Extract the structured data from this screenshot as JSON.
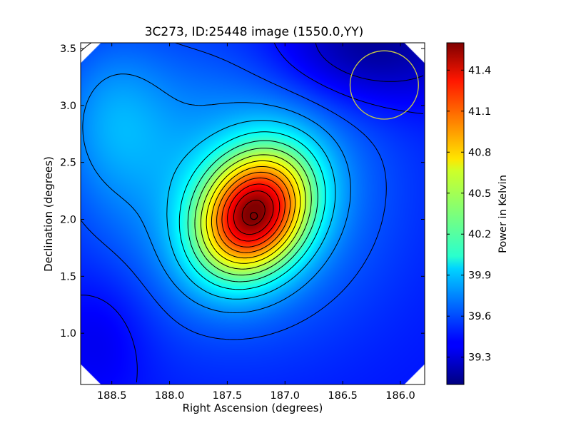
{
  "chart_data": {
    "type": "heatmap",
    "title": "3C273, ID:25448 image (1550.0,YY)",
    "xlabel": "Right Ascension (degrees)",
    "ylabel": "Declination (degrees)",
    "colorbar_label": "Power in Kelvin",
    "colormap": "jet",
    "x_axis_inverted": true,
    "xlim": [
      188.77,
      185.79
    ],
    "ylim": [
      0.55,
      3.55
    ],
    "xticks": [
      188.5,
      188.0,
      187.5,
      187.0,
      186.5,
      186.0
    ],
    "xtick_labels": [
      "188.5",
      "188.0",
      "187.5",
      "187.0",
      "186.5",
      "186.0"
    ],
    "yticks": [
      1.0,
      1.5,
      2.0,
      2.5,
      3.0,
      3.5
    ],
    "ytick_labels": [
      "1.0",
      "1.5",
      "2.0",
      "2.5",
      "3.0",
      "3.5"
    ],
    "colorbar_range": [
      39.1,
      41.6
    ],
    "colorbar_ticks": [
      39.3,
      39.6,
      39.9,
      40.2,
      40.5,
      40.8,
      41.1,
      41.4
    ],
    "colorbar_tick_labels": [
      "39.3",
      "39.6",
      "39.9",
      "40.2",
      "40.5",
      "40.8",
      "41.1",
      "41.4"
    ],
    "contours": true,
    "peak": {
      "ra": 187.27,
      "dec": 2.05,
      "value": 41.55
    },
    "markers": [
      {
        "name": "source",
        "shape": "circle",
        "ra": 187.27,
        "dec": 2.03
      },
      {
        "name": "beam",
        "shape": "circle",
        "ra": 186.14,
        "dec": 3.18,
        "radius_deg": 0.3,
        "color": "#cccc44"
      }
    ]
  }
}
